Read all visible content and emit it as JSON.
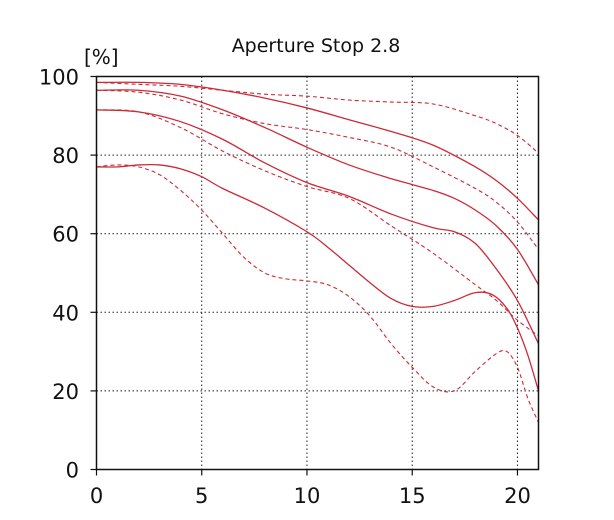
{
  "chart_data": {
    "type": "line",
    "title": "Aperture Stop 2.8",
    "ylabel": "[%]",
    "xlabel": "",
    "xlim": [
      0,
      21
    ],
    "ylim": [
      0,
      100
    ],
    "xticks": [
      0,
      5,
      10,
      15,
      20
    ],
    "yticks": [
      0,
      20,
      40,
      60,
      80,
      100
    ],
    "grid": true,
    "grid_style": "dotted",
    "line_color": "#cc2a36",
    "series": [
      {
        "style": "solid",
        "points": [
          [
            0,
            98.5
          ],
          [
            2,
            98.5
          ],
          [
            4,
            98
          ],
          [
            6,
            96.5
          ],
          [
            8,
            94.5
          ],
          [
            10,
            92
          ],
          [
            12,
            89
          ],
          [
            14,
            86
          ],
          [
            16,
            82.5
          ],
          [
            18,
            77
          ],
          [
            19,
            73.5
          ],
          [
            20,
            69
          ],
          [
            21,
            63.5
          ]
        ]
      },
      {
        "style": "dashed",
        "points": [
          [
            0,
            98.5
          ],
          [
            2,
            98
          ],
          [
            4,
            97.5
          ],
          [
            6,
            96.5
          ],
          [
            8,
            95.5
          ],
          [
            10,
            95
          ],
          [
            12,
            94
          ],
          [
            14,
            93.5
          ],
          [
            16,
            93
          ],
          [
            18,
            90
          ],
          [
            19,
            88
          ],
          [
            20,
            85
          ],
          [
            21,
            80.5
          ]
        ]
      },
      {
        "style": "solid",
        "points": [
          [
            0,
            96.5
          ],
          [
            2,
            96.5
          ],
          [
            4,
            95
          ],
          [
            6,
            91.5
          ],
          [
            8,
            87
          ],
          [
            10,
            82
          ],
          [
            12,
            77.5
          ],
          [
            14,
            74
          ],
          [
            16,
            71
          ],
          [
            17,
            69
          ],
          [
            18,
            66
          ],
          [
            19,
            62
          ],
          [
            20,
            56
          ],
          [
            21,
            47
          ]
        ]
      },
      {
        "style": "dashed",
        "points": [
          [
            0,
            96.5
          ],
          [
            2,
            96
          ],
          [
            4,
            94
          ],
          [
            6,
            90.5
          ],
          [
            8,
            88
          ],
          [
            10,
            86.5
          ],
          [
            12,
            84.5
          ],
          [
            14,
            82
          ],
          [
            16,
            77
          ],
          [
            18,
            71.5
          ],
          [
            19,
            68
          ],
          [
            20,
            63
          ],
          [
            21,
            56
          ]
        ]
      },
      {
        "style": "solid",
        "points": [
          [
            0,
            91.5
          ],
          [
            2,
            91
          ],
          [
            4,
            88.5
          ],
          [
            6,
            84
          ],
          [
            8,
            78
          ],
          [
            10,
            73
          ],
          [
            12,
            69.5
          ],
          [
            14,
            65
          ],
          [
            16,
            61.5
          ],
          [
            17,
            60.5
          ],
          [
            18,
            57.5
          ],
          [
            19,
            51
          ],
          [
            20,
            43
          ],
          [
            21,
            32
          ]
        ]
      },
      {
        "style": "dashed",
        "points": [
          [
            0,
            91.5
          ],
          [
            2,
            91
          ],
          [
            4,
            87
          ],
          [
            6,
            81
          ],
          [
            8,
            76
          ],
          [
            10,
            72
          ],
          [
            12,
            69
          ],
          [
            14,
            62
          ],
          [
            16,
            55
          ],
          [
            18,
            47
          ],
          [
            19,
            43
          ],
          [
            20,
            38
          ],
          [
            21,
            34
          ]
        ]
      },
      {
        "style": "solid",
        "points": [
          [
            0,
            77
          ],
          [
            1,
            77
          ],
          [
            2,
            77.5
          ],
          [
            3,
            77.5
          ],
          [
            4,
            76.5
          ],
          [
            5,
            74.5
          ],
          [
            6,
            71.5
          ],
          [
            8,
            66.5
          ],
          [
            10,
            60.5
          ],
          [
            11,
            56.5
          ],
          [
            12,
            52
          ],
          [
            13,
            47.5
          ],
          [
            14,
            43.5
          ],
          [
            15,
            41.5
          ],
          [
            16,
            41.5
          ],
          [
            17,
            43
          ],
          [
            18,
            45
          ],
          [
            18.8,
            44.5
          ],
          [
            19.5,
            41
          ],
          [
            20,
            36
          ],
          [
            20.5,
            29
          ],
          [
            21,
            20
          ]
        ]
      },
      {
        "style": "dashed",
        "points": [
          [
            0,
            77
          ],
          [
            1,
            77.5
          ],
          [
            2,
            77
          ],
          [
            3,
            75
          ],
          [
            4,
            71
          ],
          [
            5,
            66
          ],
          [
            6,
            60
          ],
          [
            7,
            54
          ],
          [
            8,
            50
          ],
          [
            9,
            48.5
          ],
          [
            10,
            48
          ],
          [
            11,
            47
          ],
          [
            12,
            44
          ],
          [
            13,
            39
          ],
          [
            14,
            32
          ],
          [
            15,
            26
          ],
          [
            16,
            21
          ],
          [
            17,
            20
          ],
          [
            18,
            25
          ],
          [
            19,
            29.5
          ],
          [
            19.5,
            30
          ],
          [
            20,
            26
          ],
          [
            20.5,
            18
          ],
          [
            21,
            12
          ]
        ]
      }
    ]
  }
}
